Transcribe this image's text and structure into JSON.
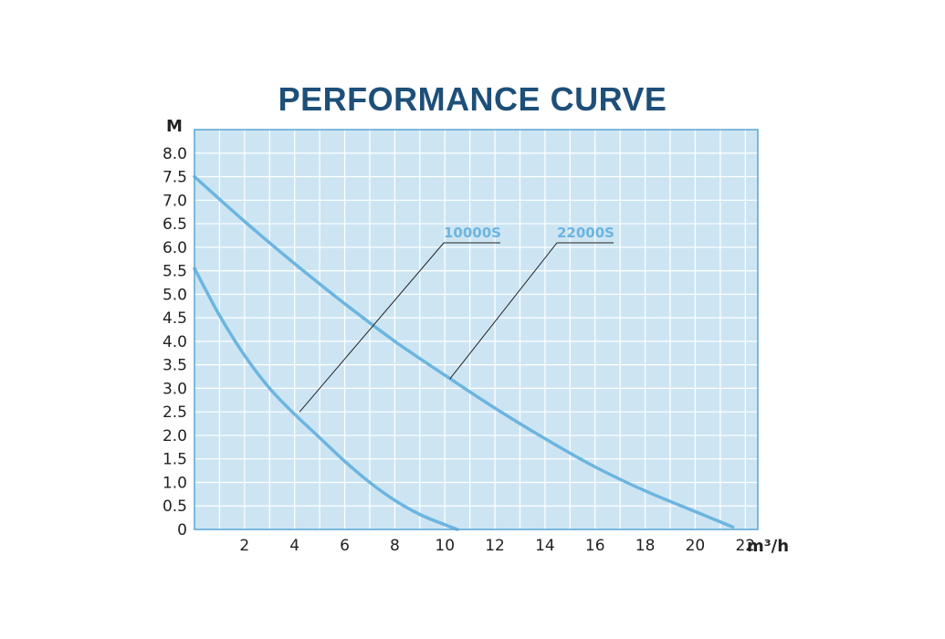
{
  "chart_data": {
    "type": "line",
    "title": "PERFORMANCE CURVE",
    "xlabel": "m³/h",
    "ylabel": "M",
    "xlim": [
      0,
      22.5
    ],
    "ylim": [
      0,
      8.5
    ],
    "x_ticks": [
      "2",
      "4",
      "6",
      "8",
      "10",
      "12",
      "14",
      "16",
      "18",
      "20",
      "22"
    ],
    "y_ticks": [
      "0",
      "0.5",
      "1.0",
      "1.5",
      "2.0",
      "2.5",
      "3.0",
      "3.5",
      "4.0",
      "4.5",
      "5.0",
      "5.5",
      "6.0",
      "6.5",
      "7.0",
      "7.5",
      "8.0"
    ],
    "grid": true,
    "series": [
      {
        "name": "10000S",
        "points": [
          [
            0,
            5.55
          ],
          [
            1,
            4.55
          ],
          [
            2,
            3.7
          ],
          [
            3,
            3.0
          ],
          [
            4,
            2.45
          ],
          [
            5,
            1.95
          ],
          [
            6,
            1.45
          ],
          [
            7,
            1.0
          ],
          [
            8,
            0.62
          ],
          [
            9,
            0.32
          ],
          [
            10,
            0.1
          ],
          [
            10.5,
            0.0
          ]
        ]
      },
      {
        "name": "22000S",
        "points": [
          [
            0,
            7.5
          ],
          [
            2,
            6.55
          ],
          [
            4,
            5.65
          ],
          [
            6,
            4.8
          ],
          [
            8,
            4.0
          ],
          [
            10,
            3.28
          ],
          [
            12,
            2.58
          ],
          [
            14,
            1.93
          ],
          [
            16,
            1.33
          ],
          [
            18,
            0.82
          ],
          [
            20,
            0.38
          ],
          [
            21.5,
            0.05
          ]
        ]
      }
    ],
    "annotations": [
      {
        "text": "10000S",
        "points_to": [
          4.2,
          2.5
        ]
      },
      {
        "text": "22000S",
        "points_to": [
          10.2,
          3.2
        ]
      }
    ],
    "colors": {
      "title": "#1e4f78",
      "plot_background": "#cde5f3",
      "grid": "#ffffff",
      "border": "#5aa5d4",
      "curve": "#6db5e0",
      "label": "#6db5e0",
      "leader": "#222222"
    }
  }
}
